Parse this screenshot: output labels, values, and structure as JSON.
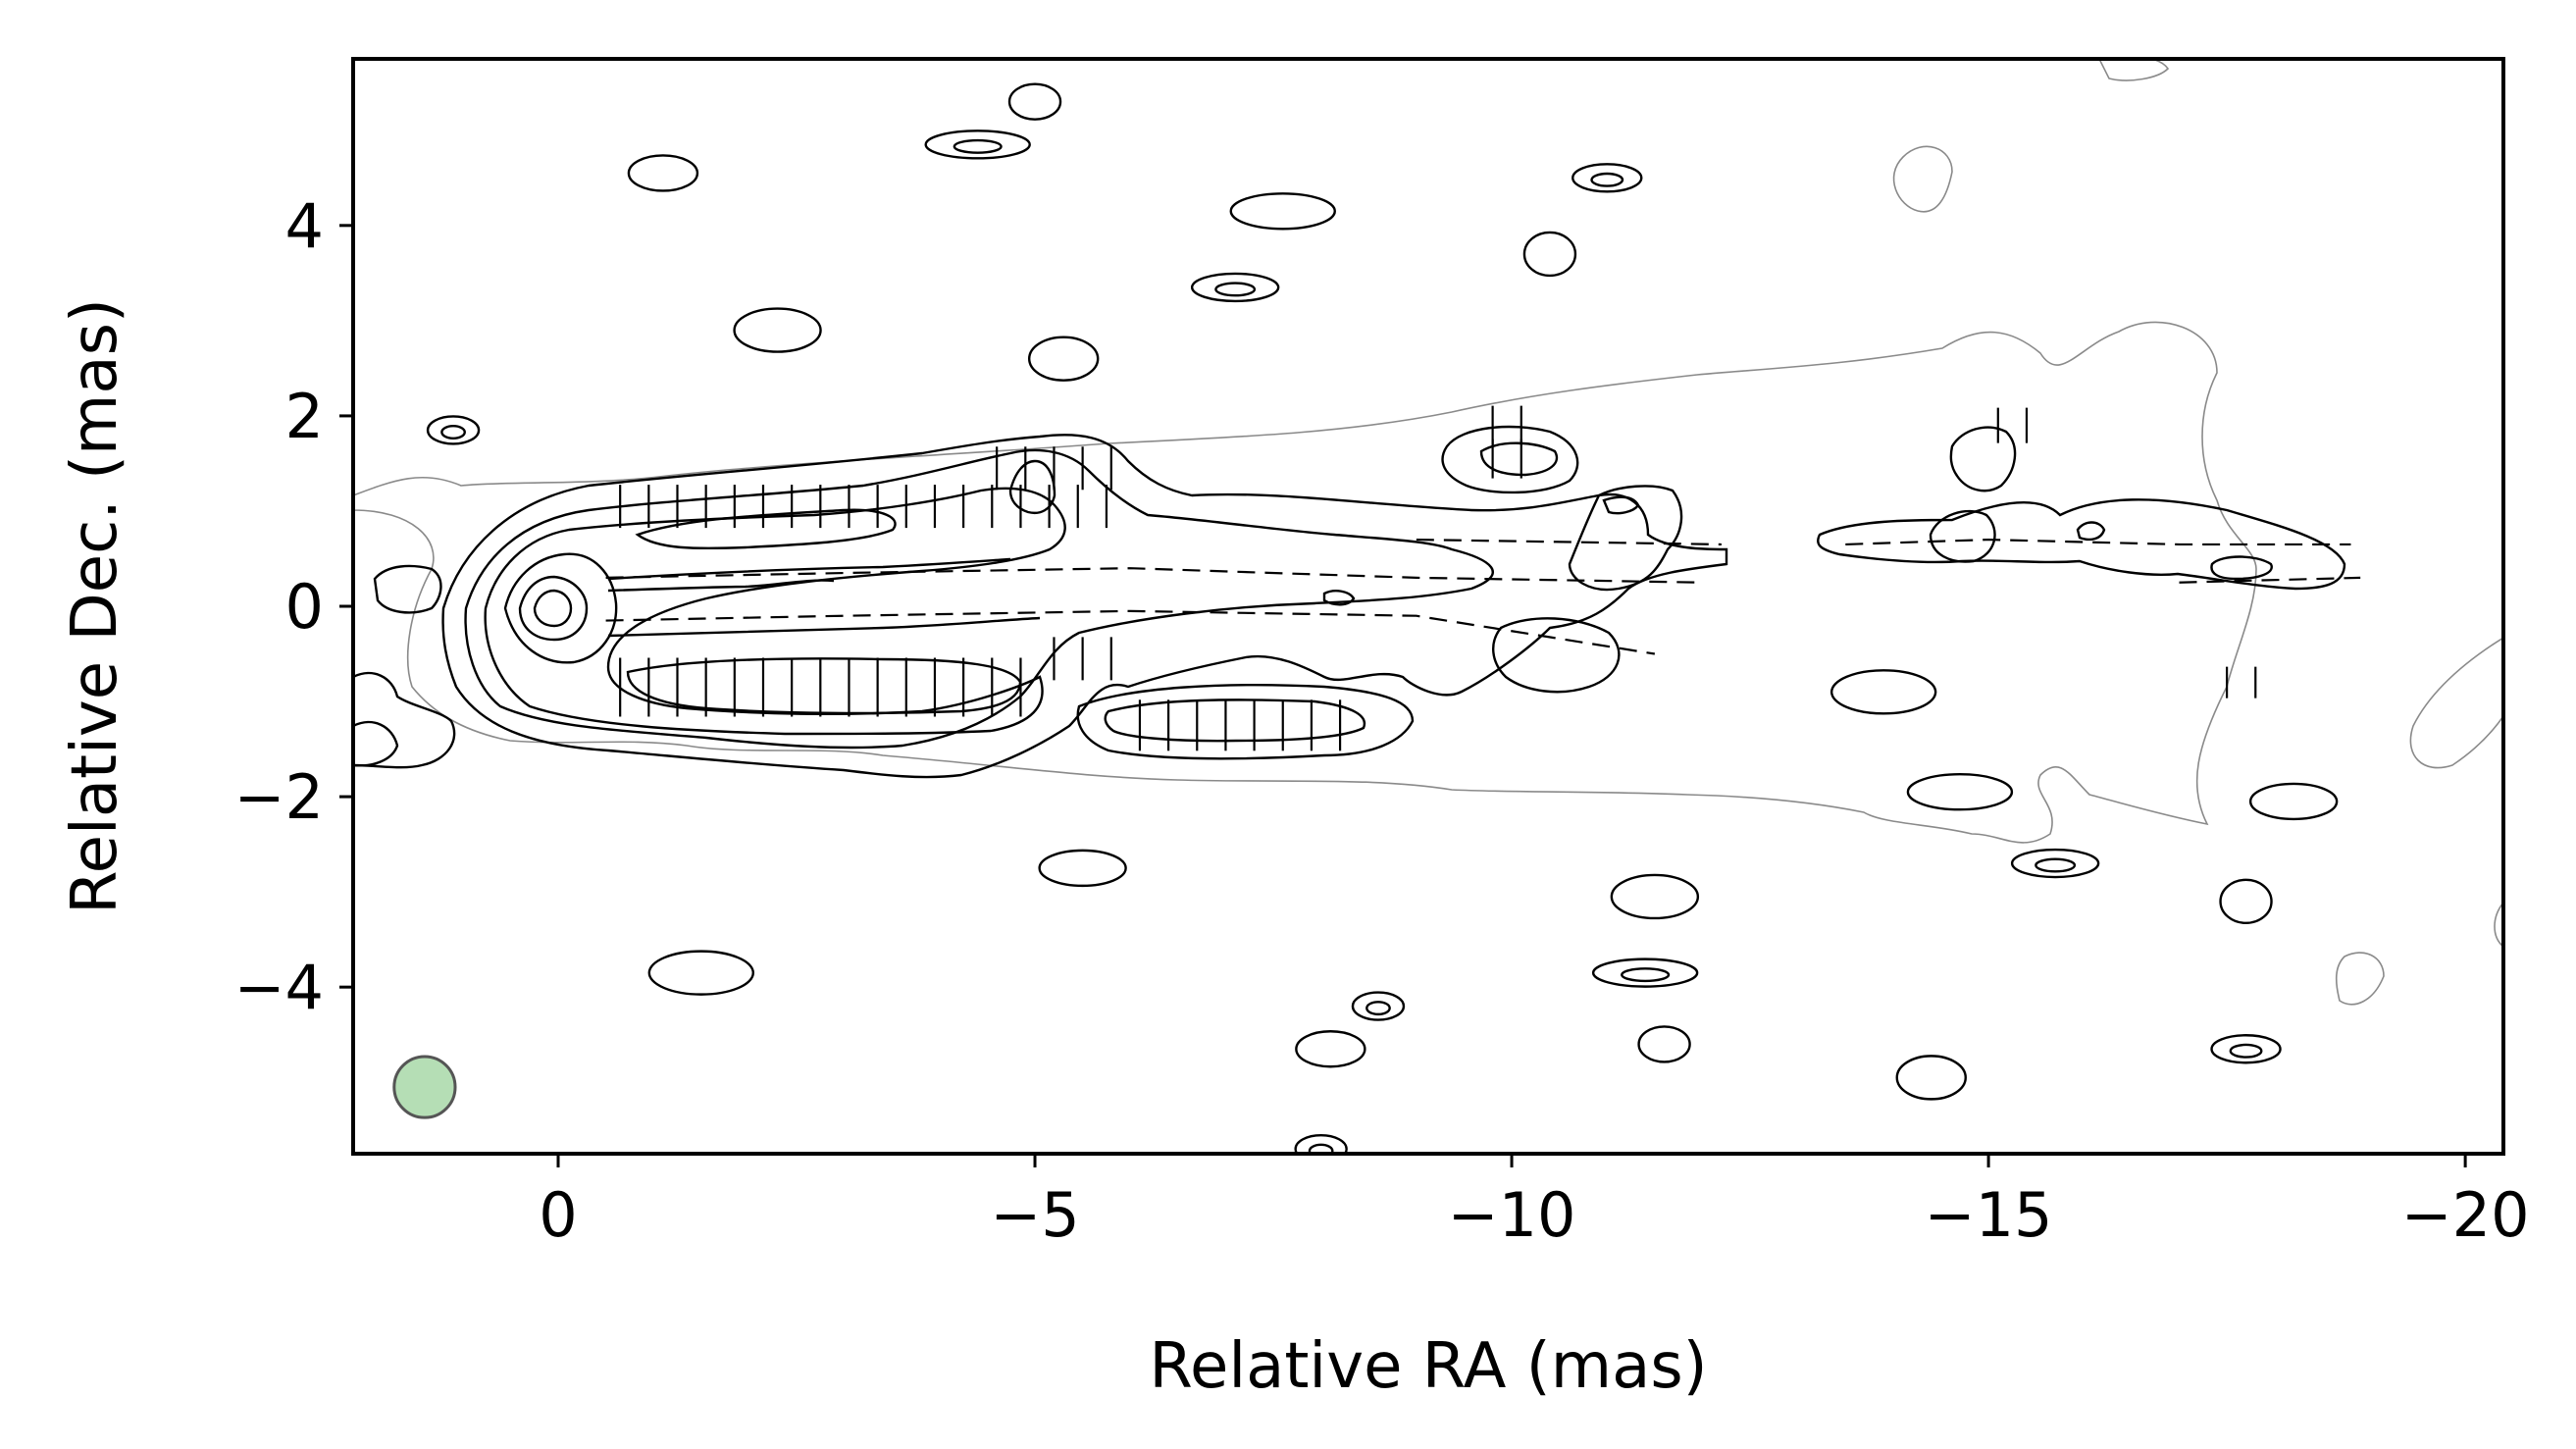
{
  "chart_data": {
    "type": "contour",
    "xlabel": "Relative RA (mas)",
    "ylabel": "Relative Dec. (mas)",
    "xlim": [
      2.15,
      -20.4
    ],
    "ylim": [
      -5.75,
      5.75
    ],
    "x_ticks": [
      {
        "value": 0,
        "label": "0"
      },
      {
        "value": -5,
        "label": "−5"
      },
      {
        "value": -10,
        "label": "−10"
      },
      {
        "value": -15,
        "label": "−15"
      },
      {
        "value": -20,
        "label": "−20"
      }
    ],
    "y_ticks": [
      {
        "value": 4,
        "label": "4"
      },
      {
        "value": 2,
        "label": "2"
      },
      {
        "value": 0,
        "label": "0"
      },
      {
        "value": -2,
        "label": "−2"
      },
      {
        "value": -4,
        "label": "−4"
      }
    ],
    "beam": {
      "center": [
        1.4,
        -5.05
      ],
      "radius_mas": 0.32,
      "color": "#2ca02c"
    },
    "core": {
      "x": 0,
      "y": 0
    },
    "jet_ridges": [
      {
        "x": [
          -0.5,
          -3,
          -6,
          -9,
          -12
        ],
        "y": [
          0.3,
          0.35,
          0.4,
          0.3,
          0.25
        ]
      },
      {
        "x": [
          -0.5,
          -3,
          -6,
          -9,
          -11.5
        ],
        "y": [
          -0.15,
          -0.1,
          -0.05,
          -0.1,
          -0.5
        ]
      },
      {
        "x": [
          -13.5,
          -15,
          -17,
          -18.8
        ],
        "y": [
          0.65,
          0.7,
          0.65,
          0.65
        ]
      },
      {
        "x": [
          -17,
          -18.9
        ],
        "y": [
          0.25,
          0.3
        ]
      },
      {
        "x": [
          -9,
          -12.2
        ],
        "y": [
          0.7,
          0.65
        ]
      }
    ],
    "noise_islands": [
      {
        "x": 1.1,
        "y": 1.85
      },
      {
        "x": -1.1,
        "y": 4.55
      },
      {
        "x": -2.3,
        "y": 2.9
      },
      {
        "x": -4.4,
        "y": 4.85
      },
      {
        "x": -5,
        "y": 5.3
      },
      {
        "x": -5.3,
        "y": 2.6
      },
      {
        "x": -7.1,
        "y": 3.35
      },
      {
        "x": -7.6,
        "y": 4.15
      },
      {
        "x": -10.4,
        "y": 3.7
      },
      {
        "x": -11,
        "y": 4.5
      },
      {
        "x": -5.5,
        "y": -2.75
      },
      {
        "x": -1.5,
        "y": -3.85
      },
      {
        "x": -8.6,
        "y": -4.2
      },
      {
        "x": -8.1,
        "y": -4.65
      },
      {
        "x": -11.5,
        "y": -3.05
      },
      {
        "x": -11.4,
        "y": -3.85
      },
      {
        "x": -11.6,
        "y": -4.6
      },
      {
        "x": -14.4,
        "y": -4.95
      },
      {
        "x": -15.7,
        "y": -2.7
      },
      {
        "x": -14.7,
        "y": -1.95
      },
      {
        "x": -17.7,
        "y": -3.1
      },
      {
        "x": -17.7,
        "y": -4.65
      },
      {
        "x": -18.2,
        "y": -2.05
      },
      {
        "x": -13.9,
        "y": -0.9
      },
      {
        "x": -8,
        "y": -5.7
      }
    ]
  }
}
